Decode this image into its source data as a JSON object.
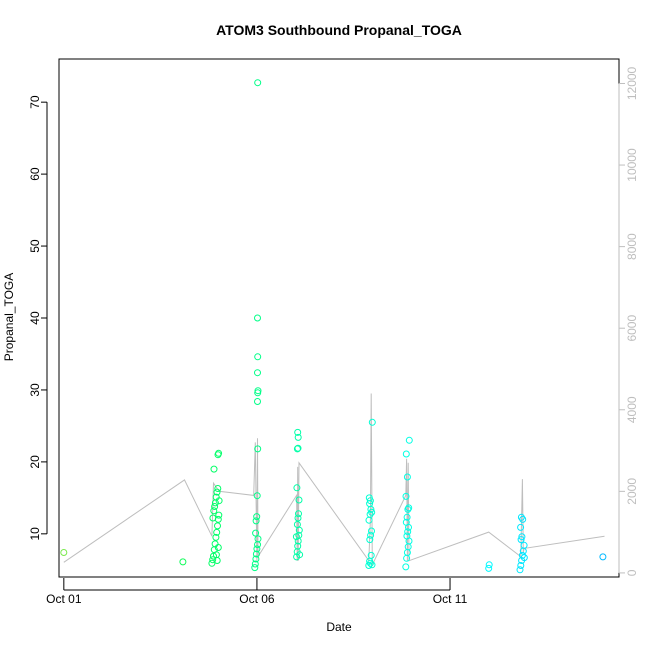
{
  "chart_data": {
    "type": "scatter",
    "title": "ATOM3 Southbound Propanal_TOGA",
    "xlabel": "Date",
    "ylabel": "Propanal_TOGA",
    "x_ticks": [
      "Oct 01",
      "Oct 06",
      "Oct 11"
    ],
    "xlim": [
      "2017-09-30T21:00",
      "2017-10-15T09:00"
    ],
    "y_ticks": [
      10,
      20,
      30,
      40,
      50,
      60,
      70
    ],
    "ylim": [
      4,
      76
    ],
    "y2_ticks": [
      0,
      2000,
      4000,
      6000,
      8000,
      10000,
      12000
    ],
    "y2lim": [
      -100,
      12600
    ],
    "grid": false,
    "colors": {
      "points_gradient": [
        "#7fe84e",
        "#00ff5a",
        "#00ffc8",
        "#00ffff",
        "#00b0ff"
      ],
      "altitude_line": "#bebebe",
      "right_axis": "#bebebe"
    },
    "series": [
      {
        "points": [
          [
            "2017-10-01T00:00",
            7.4
          ],
          [
            "2017-10-04T02:00",
            6.1
          ],
          [
            "2017-10-04T20:00",
            5.9
          ],
          [
            "2017-10-04T20:30",
            6.4
          ],
          [
            "2017-10-04T21:00",
            6.9
          ],
          [
            "2017-10-04T21:30",
            7.8
          ],
          [
            "2017-10-04T22:00",
            8.6
          ],
          [
            "2017-10-04T22:30",
            9.5
          ],
          [
            "2017-10-04T23:00",
            10.2
          ],
          [
            "2017-10-04T23:30",
            11.1
          ],
          [
            "2017-10-05T00:00",
            12.0
          ],
          [
            "2017-10-05T00:20",
            12.6
          ],
          [
            "2017-10-04T21:10",
            13.2
          ],
          [
            "2017-10-04T21:40",
            13.8
          ],
          [
            "2017-10-04T22:10",
            14.3
          ],
          [
            "2017-10-04T22:40",
            15.1
          ],
          [
            "2017-10-04T23:10",
            15.8
          ],
          [
            "2017-10-04T23:40",
            16.3
          ],
          [
            "2017-10-04T21:20",
            19.0
          ],
          [
            "2017-10-05T00:10",
            21.2
          ],
          [
            "2017-10-04T23:50",
            21.0
          ],
          [
            "2017-10-04T20:40",
            12.2
          ],
          [
            "2017-10-05T00:30",
            14.6
          ],
          [
            "2017-10-04T22:50",
            7.1
          ],
          [
            "2017-10-04T23:20",
            6.3
          ],
          [
            "2017-10-05T00:00",
            8.1
          ],
          [
            "2017-10-05T22:40",
            5.3
          ],
          [
            "2017-10-05T23:00",
            5.8
          ],
          [
            "2017-10-05T23:20",
            6.5
          ],
          [
            "2017-10-05T23:40",
            7.2
          ],
          [
            "2017-10-06T00:00",
            7.9
          ],
          [
            "2017-10-06T00:20",
            8.5
          ],
          [
            "2017-10-06T00:40",
            9.3
          ],
          [
            "2017-10-05T23:10",
            10.1
          ],
          [
            "2017-10-05T23:30",
            11.8
          ],
          [
            "2017-10-05T23:50",
            12.4
          ],
          [
            "2017-10-06T00:10",
            15.3
          ],
          [
            "2017-10-06T00:30",
            21.8
          ],
          [
            "2017-10-06T00:20",
            28.4
          ],
          [
            "2017-10-06T00:30",
            29.6
          ],
          [
            "2017-10-06T00:40",
            29.9
          ],
          [
            "2017-10-06T00:20",
            32.4
          ],
          [
            "2017-10-06T00:30",
            34.6
          ],
          [
            "2017-10-06T00:20",
            40.0
          ],
          [
            "2017-10-06T00:30",
            72.7
          ],
          [
            "2017-10-07T00:40",
            6.8
          ],
          [
            "2017-10-07T01:00",
            7.5
          ],
          [
            "2017-10-07T01:20",
            8.3
          ],
          [
            "2017-10-07T01:40",
            9.0
          ],
          [
            "2017-10-07T02:00",
            9.8
          ],
          [
            "2017-10-07T02:20",
            10.5
          ],
          [
            "2017-10-07T01:10",
            11.3
          ],
          [
            "2017-10-07T01:30",
            12.2
          ],
          [
            "2017-10-07T01:50",
            12.8
          ],
          [
            "2017-10-07T02:10",
            14.7
          ],
          [
            "2017-10-07T00:50",
            16.4
          ],
          [
            "2017-10-07T01:10",
            21.8
          ],
          [
            "2017-10-07T01:30",
            21.9
          ],
          [
            "2017-10-07T01:40",
            23.4
          ],
          [
            "2017-10-07T01:20",
            24.1
          ],
          [
            "2017-10-07T02:30",
            7.1
          ],
          [
            "2017-10-07T00:30",
            9.6
          ],
          [
            "2017-10-08T21:30",
            5.6
          ],
          [
            "2017-10-08T22:00",
            6.2
          ],
          [
            "2017-10-08T22:30",
            5.9
          ],
          [
            "2017-10-08T23:00",
            7.0
          ],
          [
            "2017-10-08T23:30",
            5.7
          ],
          [
            "2017-10-08T22:10",
            9.2
          ],
          [
            "2017-10-08T22:40",
            9.8
          ],
          [
            "2017-10-08T23:10",
            10.4
          ],
          [
            "2017-10-08T21:40",
            11.9
          ],
          [
            "2017-10-08T22:20",
            12.7
          ],
          [
            "2017-10-08T22:50",
            13.4
          ],
          [
            "2017-10-08T23:20",
            13.0
          ],
          [
            "2017-10-08T22:00",
            14.2
          ],
          [
            "2017-10-08T22:30",
            14.6
          ],
          [
            "2017-10-08T21:50",
            15.0
          ],
          [
            "2017-10-08T23:40",
            25.5
          ],
          [
            "2017-10-09T20:30",
            5.4
          ],
          [
            "2017-10-09T21:00",
            6.6
          ],
          [
            "2017-10-09T21:30",
            7.4
          ],
          [
            "2017-10-09T22:00",
            8.2
          ],
          [
            "2017-10-09T22:30",
            9.0
          ],
          [
            "2017-10-09T21:10",
            9.7
          ],
          [
            "2017-10-09T21:40",
            10.3
          ],
          [
            "2017-10-09T22:10",
            10.9
          ],
          [
            "2017-10-09T20:50",
            11.6
          ],
          [
            "2017-10-09T21:20",
            12.3
          ],
          [
            "2017-10-09T21:50",
            13.4
          ],
          [
            "2017-10-09T22:20",
            13.6
          ],
          [
            "2017-10-09T20:40",
            15.2
          ],
          [
            "2017-10-09T21:30",
            17.9
          ],
          [
            "2017-10-09T20:50",
            21.1
          ],
          [
            "2017-10-09T22:40",
            23.0
          ],
          [
            "2017-10-12T00:00",
            5.2
          ],
          [
            "2017-10-12T00:20",
            5.7
          ],
          [
            "2017-10-12T19:30",
            5.0
          ],
          [
            "2017-10-12T20:00",
            5.6
          ],
          [
            "2017-10-12T20:30",
            6.3
          ],
          [
            "2017-10-12T21:00",
            7.0
          ],
          [
            "2017-10-12T21:30",
            7.6
          ],
          [
            "2017-10-12T22:00",
            8.4
          ],
          [
            "2017-10-12T20:10",
            9.2
          ],
          [
            "2017-10-12T20:40",
            9.6
          ],
          [
            "2017-10-12T19:50",
            10.9
          ],
          [
            "2017-10-12T21:10",
            12.0
          ],
          [
            "2017-10-12T20:20",
            12.3
          ],
          [
            "2017-10-12T22:10",
            6.7
          ],
          [
            "2017-10-14T23:00",
            6.8
          ]
        ]
      },
      {
        "line": [
          [
            "2017-10-01T00:00",
            260
          ],
          [
            "2017-10-04T03:00",
            2280
          ],
          [
            "2017-10-04T20:00",
            900
          ],
          [
            "2017-10-04T21:00",
            2200
          ],
          [
            "2017-10-05T00:30",
            2000
          ],
          [
            "2017-10-05T22:00",
            1900
          ],
          [
            "2017-10-05T23:00",
            3200
          ],
          [
            "2017-10-06T00:00",
            300
          ],
          [
            "2017-10-06T00:20",
            3300
          ],
          [
            "2017-10-06T00:40",
            400
          ],
          [
            "2017-10-07T00:40",
            1900
          ],
          [
            "2017-10-07T01:00",
            300
          ],
          [
            "2017-10-07T01:20",
            2600
          ],
          [
            "2017-10-07T01:40",
            300
          ],
          [
            "2017-10-07T02:10",
            2700
          ],
          [
            "2017-10-08T21:30",
            300
          ],
          [
            "2017-10-08T22:30",
            1300
          ],
          [
            "2017-10-08T23:00",
            4400
          ],
          [
            "2017-10-08T23:40",
            200
          ],
          [
            "2017-10-09T20:30",
            1900
          ],
          [
            "2017-10-09T21:00",
            2800
          ],
          [
            "2017-10-09T21:30",
            300
          ],
          [
            "2017-10-09T22:00",
            2700
          ],
          [
            "2017-10-09T22:30",
            300
          ],
          [
            "2017-10-12T00:00",
            1000
          ],
          [
            "2017-10-12T20:00",
            400
          ],
          [
            "2017-10-12T21:00",
            2300
          ],
          [
            "2017-10-12T21:30",
            500
          ],
          [
            "2017-10-12T22:00",
            600
          ],
          [
            "2017-10-15T00:00",
            900
          ]
        ]
      }
    ]
  }
}
